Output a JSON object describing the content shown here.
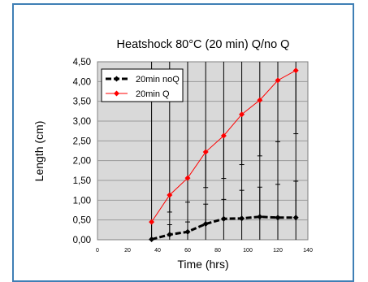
{
  "chart_data": {
    "type": "line",
    "title": "Heatshock 80°C (20 min) Q/no Q",
    "xlabel": "Time (hrs)",
    "ylabel": "Length (cm)",
    "xlim": [
      0,
      140
    ],
    "ylim": [
      0,
      4.5
    ],
    "x_ticks": [
      "0",
      "20",
      "40",
      "60",
      "80",
      "100",
      "120",
      "140"
    ],
    "y_ticks": [
      "0,00",
      "0,50",
      "1,00",
      "1,50",
      "2,00",
      "2,50",
      "3,00",
      "3,50",
      "4,00",
      "4,50"
    ],
    "grid": true,
    "legend_position": "top-left",
    "series": [
      {
        "name": "20min noQ",
        "color": "#000000",
        "marker": "diamond",
        "line_style": "dashed",
        "x": [
          36,
          48,
          60,
          72,
          84,
          96,
          108,
          120,
          132
        ],
        "y": [
          0.01,
          0.13,
          0.2,
          0.4,
          0.53,
          0.54,
          0.58,
          0.56,
          0.56
        ],
        "err_upper": [
          0,
          0.38,
          0.45,
          0.9,
          1.02,
          1.25,
          1.33,
          1.4,
          1.48
        ]
      },
      {
        "name": "20min Q",
        "color": "#ff0000",
        "marker": "diamond",
        "line_style": "solid",
        "x": [
          36,
          48,
          60,
          72,
          84,
          96,
          108,
          120,
          132
        ],
        "y": [
          0.45,
          1.13,
          1.56,
          2.22,
          2.63,
          3.17,
          3.53,
          4.03,
          4.28
        ],
        "err_lower": [
          0.0,
          0.7,
          0.95,
          1.32,
          1.55,
          1.9,
          2.12,
          2.48,
          2.68
        ]
      }
    ]
  }
}
